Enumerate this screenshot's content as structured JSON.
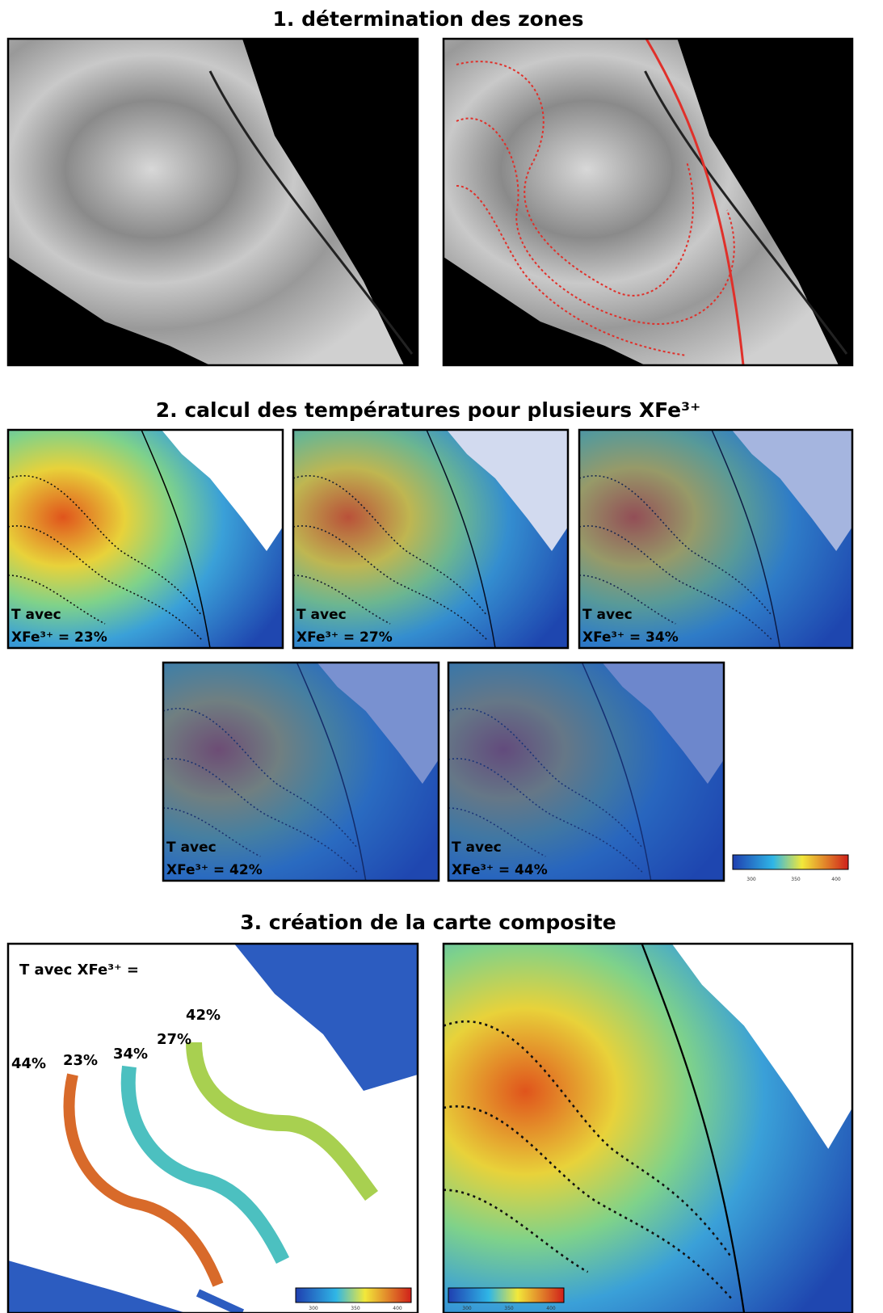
{
  "sections": [
    {
      "title": "1. détermination des zones"
    },
    {
      "title": "2. calcul des températures pour plusieurs XFe³⁺",
      "panels": [
        {
          "line1": "T avec",
          "line2": "XFe³⁺ = 23%"
        },
        {
          "line1": "T avec",
          "line2": "XFe³⁺ = 27%"
        },
        {
          "line1": "T avec",
          "line2": "XFe³⁺ = 34%"
        },
        {
          "line1": "T avec",
          "line2": "XFe³⁺ = 42%"
        },
        {
          "line1": "T avec",
          "line2": "XFe³⁺ = 44%"
        }
      ],
      "colorbar": {
        "ticks": [
          "300",
          "350",
          "400"
        ]
      }
    },
    {
      "title": "3. création de la carte composite",
      "legend_title": "T avec XFe³⁺ =",
      "zone_labels": [
        "42%",
        "27%",
        "34%",
        "23%",
        "44%"
      ],
      "colorbars": [
        {
          "ticks": [
            "300",
            "350",
            "400"
          ]
        },
        {
          "ticks": [
            "300",
            "350",
            "400"
          ]
        }
      ]
    }
  ]
}
